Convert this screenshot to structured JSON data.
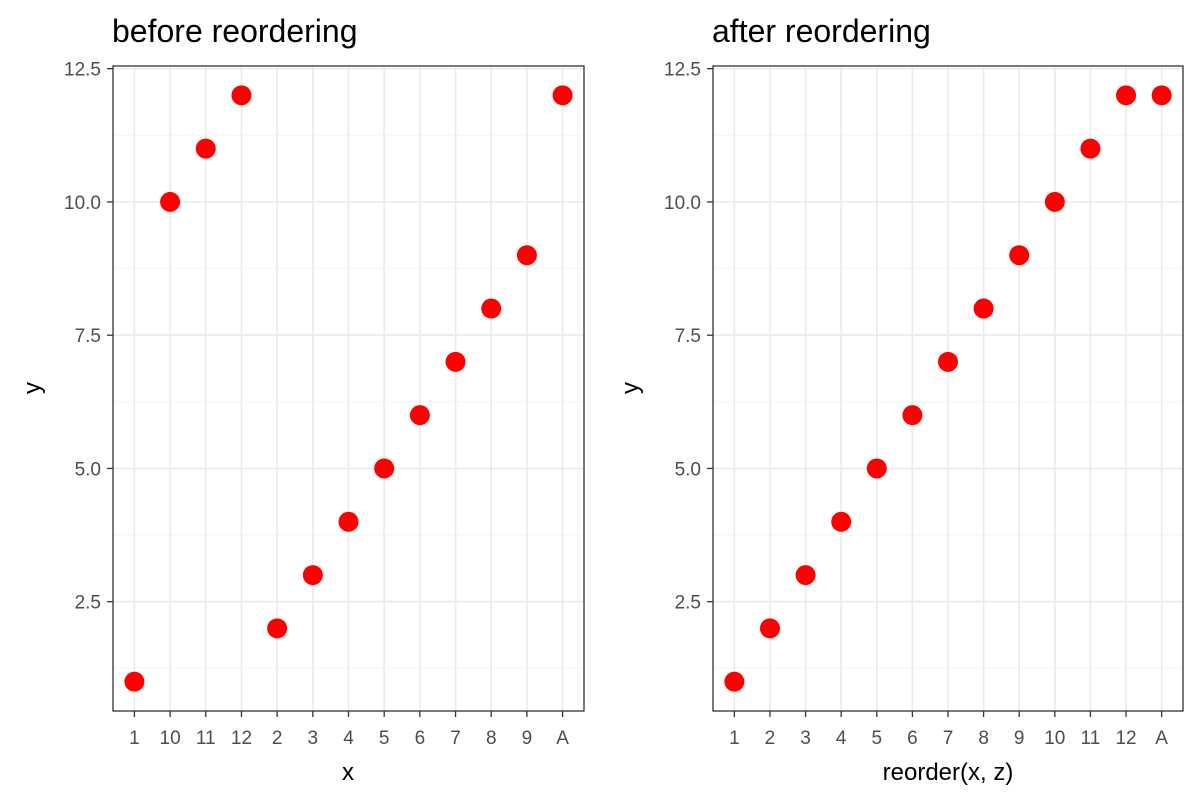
{
  "colors": {
    "point": "#ff0000",
    "grid_major": "#ebebeb",
    "grid_minor": "#f5f5f5",
    "panel_border": "#333333",
    "tick_text": "#4d4d4d"
  },
  "chart_data": [
    {
      "type": "scatter",
      "title": "before reordering",
      "xlabel": "x",
      "ylabel": "y",
      "categories": [
        "1",
        "10",
        "11",
        "12",
        "2",
        "3",
        "4",
        "5",
        "6",
        "7",
        "8",
        "9",
        "A"
      ],
      "values": [
        1,
        10,
        11,
        12,
        2,
        3,
        4,
        5,
        6,
        7,
        8,
        9,
        12
      ],
      "yticks": [
        2.5,
        5.0,
        7.5,
        10.0,
        12.5
      ],
      "ytick_labels": [
        "2.5",
        "5.0",
        "7.5",
        "10.0",
        "12.5"
      ],
      "ylim": [
        0.45,
        12.55
      ],
      "grid": true
    },
    {
      "type": "scatter",
      "title": "after reordering",
      "xlabel": "reorder(x, z)",
      "ylabel": "y",
      "categories": [
        "1",
        "2",
        "3",
        "4",
        "5",
        "6",
        "7",
        "8",
        "9",
        "10",
        "11",
        "12",
        "A"
      ],
      "values": [
        1,
        2,
        3,
        4,
        5,
        6,
        7,
        8,
        9,
        10,
        11,
        12,
        12
      ],
      "yticks": [
        2.5,
        5.0,
        7.5,
        10.0,
        12.5
      ],
      "ytick_labels": [
        "2.5",
        "5.0",
        "7.5",
        "10.0",
        "12.5"
      ],
      "ylim": [
        0.45,
        12.55
      ],
      "grid": true
    }
  ]
}
